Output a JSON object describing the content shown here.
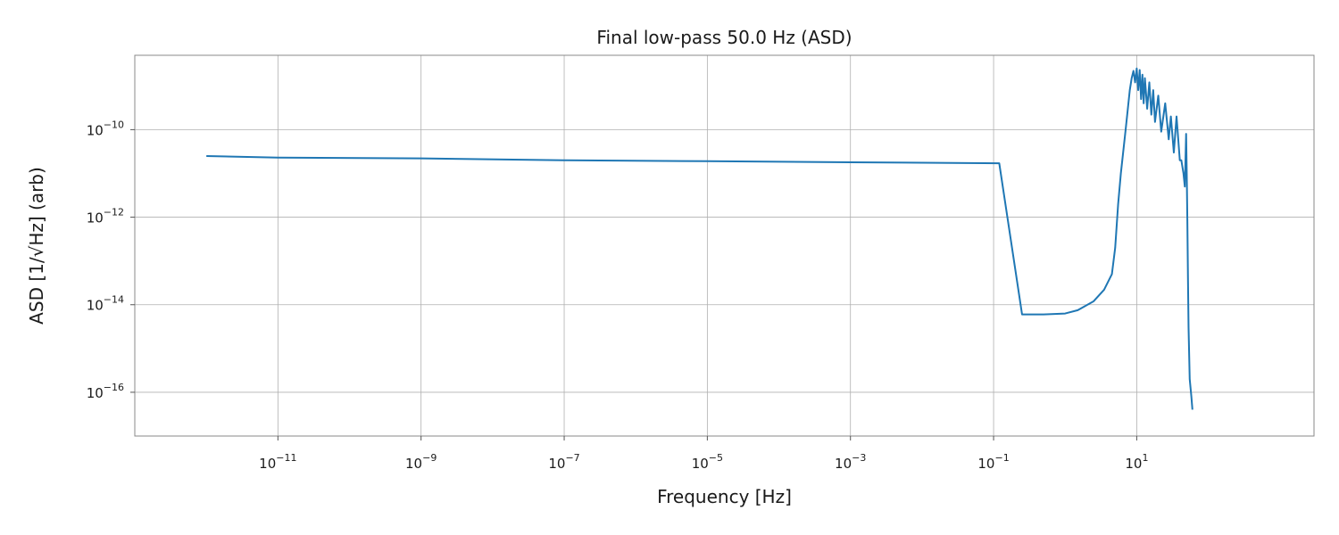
{
  "chart_data": {
    "type": "line",
    "title": "Final low-pass 50.0 Hz (ASD)",
    "xlabel": "Frequency [Hz]",
    "ylabel": "ASD [1/√Hz] (arb)",
    "xscale": "log",
    "yscale": "log",
    "xlim": [
      1e-13,
      3000.0
    ],
    "ylim": [
      1e-17,
      5e-09
    ],
    "grid": true,
    "line_color": "#1f77b4",
    "xticks": [
      {
        "base": "10",
        "exp": "−11",
        "value": 1e-11
      },
      {
        "base": "10",
        "exp": "−9",
        "value": 1e-09
      },
      {
        "base": "10",
        "exp": "−7",
        "value": 1e-07
      },
      {
        "base": "10",
        "exp": "−5",
        "value": 1e-05
      },
      {
        "base": "10",
        "exp": "−3",
        "value": 0.001
      },
      {
        "base": "10",
        "exp": "−1",
        "value": 0.1
      },
      {
        "base": "10",
        "exp": "1",
        "value": 10
      }
    ],
    "yticks": [
      {
        "base": "10",
        "exp": "−10",
        "value": 1e-10
      },
      {
        "base": "10",
        "exp": "−12",
        "value": 1e-12
      },
      {
        "base": "10",
        "exp": "−14",
        "value": 1e-14
      },
      {
        "base": "10",
        "exp": "−16",
        "value": 1e-16
      }
    ],
    "series": [
      {
        "x": [
          1e-12,
          1e-11,
          1e-09,
          1e-07,
          1e-05,
          0.001,
          0.12,
          0.25,
          0.5,
          1.0,
          1.5,
          2.5,
          3.5,
          4.5,
          5.0,
          5.5,
          6.0,
          7.0,
          8.0,
          8.5,
          9.0,
          9.5,
          10.0,
          10.5,
          11.0,
          11.5,
          12.0,
          12.5,
          13.0,
          14.0,
          15.0,
          16.0,
          17.0,
          18.0,
          20.0,
          22.0,
          25.0,
          28.0,
          30.0,
          33.0,
          36.0,
          40.0,
          42.0,
          45.0,
          47.0,
          49.0,
          50.0,
          51.0,
          52.0,
          53.0,
          55.0,
          58.0,
          60.0
        ],
        "y": [
          2.5e-11,
          2.3e-11,
          2.2e-11,
          2e-11,
          1.9e-11,
          1.8e-11,
          1.7e-11,
          6e-15,
          6e-15,
          6.3e-15,
          7.5e-15,
          1.2e-14,
          2.2e-14,
          5e-14,
          2e-13,
          2e-12,
          1e-11,
          1e-10,
          8e-10,
          1.5e-09,
          2.2e-09,
          1.2e-09,
          2.5e-09,
          8e-10,
          2.3e-09,
          5e-10,
          1.8e-09,
          4e-10,
          1.5e-09,
          3e-10,
          1.2e-09,
          2.2e-10,
          8e-10,
          1.5e-10,
          6e-10,
          9e-11,
          4e-10,
          6e-11,
          2e-10,
          3e-11,
          2e-10,
          2e-11,
          2e-11,
          1e-11,
          5e-12,
          8e-11,
          1e-11,
          8e-13,
          4e-14,
          3e-15,
          2e-16,
          8e-17,
          4e-17
        ]
      }
    ]
  }
}
